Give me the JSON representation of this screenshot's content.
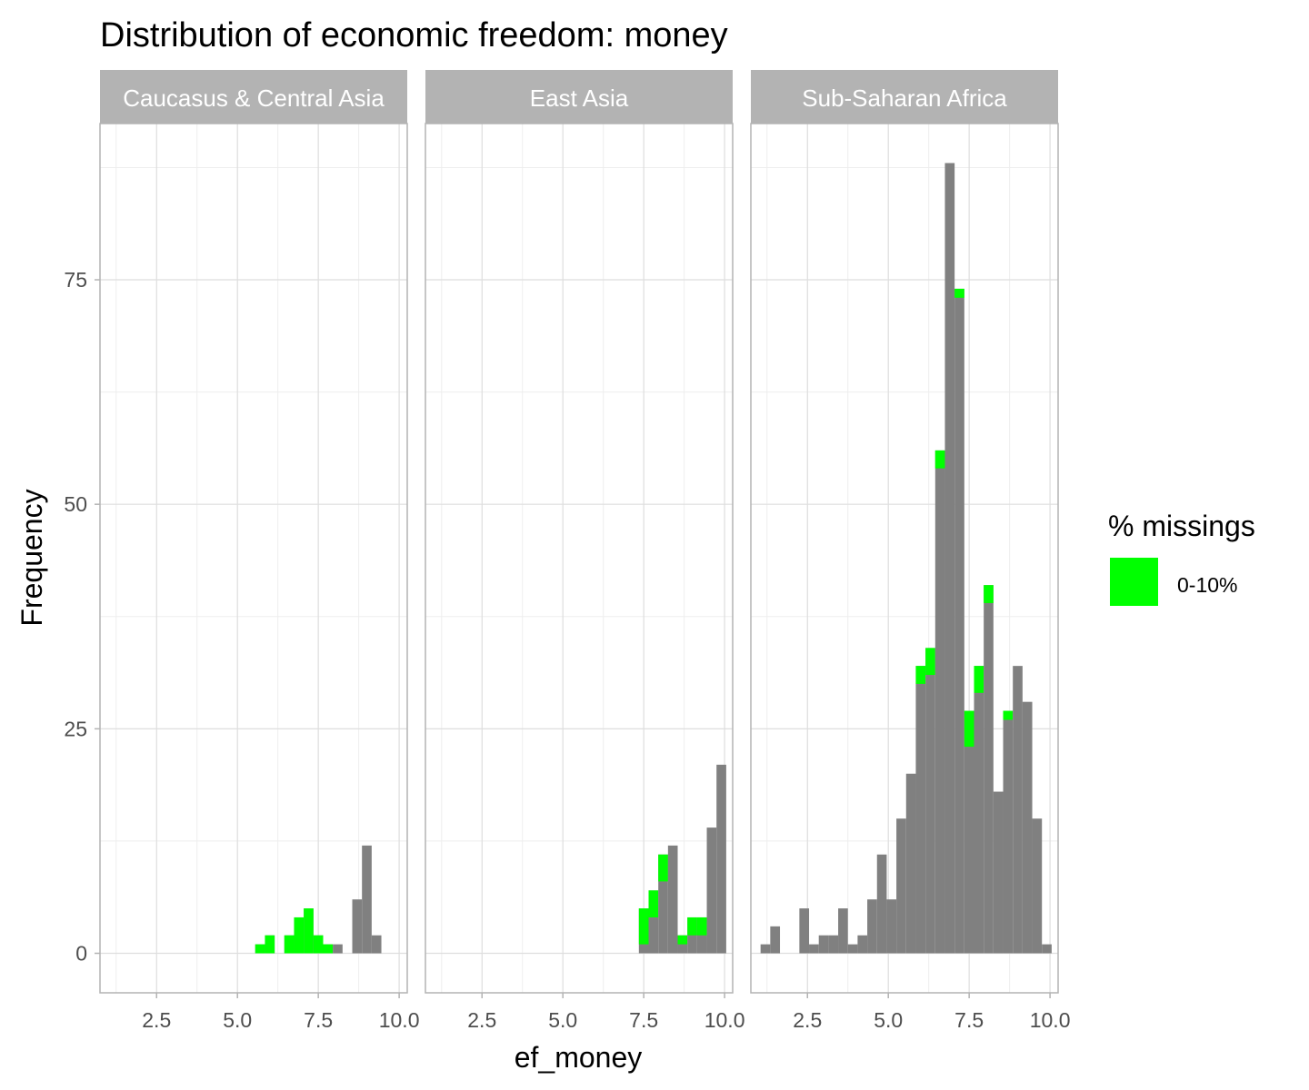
{
  "chart_data": {
    "type": "bar",
    "title": "Distribution of economic freedom: money",
    "xlabel": "ef_money",
    "ylabel": "Frequency",
    "xlim": [
      0.75,
      10.25
    ],
    "ylim": [
      -4.4,
      92.4
    ],
    "x_ticks": [
      2.5,
      5.0,
      7.5,
      10.0
    ],
    "x_tick_labels": [
      "2.5",
      "5.0",
      "7.5",
      "10.0"
    ],
    "y_ticks": [
      0,
      25,
      50,
      75
    ],
    "y_tick_labels": [
      "0",
      "25",
      "50",
      "75"
    ],
    "bin_width": 0.3,
    "grid": true,
    "legend": {
      "title": "% missings",
      "position": "right",
      "entries": [
        {
          "label": "0-10%",
          "color": "#00ff00"
        }
      ]
    },
    "colors": {
      "bars": "#808080",
      "missing": "#00ff00",
      "strip": "#b3b3b3",
      "grid_major": "#dedede",
      "grid_minor": "#eeeeee",
      "panel_border": "#b3b3b3"
    },
    "panels": [
      {
        "name": "Caucasus & Central Asia",
        "bins": [
          {
            "x": 5.7,
            "total": 1,
            "missing": 1
          },
          {
            "x": 6.0,
            "total": 2,
            "missing": 2
          },
          {
            "x": 6.6,
            "total": 2,
            "missing": 2
          },
          {
            "x": 6.9,
            "total": 4,
            "missing": 4
          },
          {
            "x": 7.2,
            "total": 5,
            "missing": 5
          },
          {
            "x": 7.5,
            "total": 2,
            "missing": 2
          },
          {
            "x": 7.8,
            "total": 1,
            "missing": 1
          },
          {
            "x": 8.1,
            "total": 1,
            "missing": 0
          },
          {
            "x": 8.7,
            "total": 6,
            "missing": 0
          },
          {
            "x": 9.0,
            "total": 12,
            "missing": 0
          },
          {
            "x": 9.3,
            "total": 2,
            "missing": 0
          }
        ]
      },
      {
        "name": "East Asia",
        "bins": [
          {
            "x": 7.5,
            "total": 5,
            "missing": 4
          },
          {
            "x": 7.8,
            "total": 7,
            "missing": 3
          },
          {
            "x": 8.1,
            "total": 11,
            "missing": 3
          },
          {
            "x": 8.4,
            "total": 12,
            "missing": 0
          },
          {
            "x": 8.7,
            "total": 2,
            "missing": 1
          },
          {
            "x": 9.0,
            "total": 4,
            "missing": 2
          },
          {
            "x": 9.3,
            "total": 4,
            "missing": 2
          },
          {
            "x": 9.6,
            "total": 14,
            "missing": 0
          },
          {
            "x": 9.9,
            "total": 21,
            "missing": 0
          }
        ]
      },
      {
        "name": "Sub-Saharan Africa",
        "bins": [
          {
            "x": 1.2,
            "total": 1,
            "missing": 0
          },
          {
            "x": 1.5,
            "total": 3,
            "missing": 0
          },
          {
            "x": 2.4,
            "total": 5,
            "missing": 0
          },
          {
            "x": 2.7,
            "total": 1,
            "missing": 0
          },
          {
            "x": 3.0,
            "total": 2,
            "missing": 0
          },
          {
            "x": 3.3,
            "total": 2,
            "missing": 0
          },
          {
            "x": 3.6,
            "total": 5,
            "missing": 0
          },
          {
            "x": 3.9,
            "total": 1,
            "missing": 0
          },
          {
            "x": 4.2,
            "total": 2,
            "missing": 0
          },
          {
            "x": 4.5,
            "total": 6,
            "missing": 0
          },
          {
            "x": 4.8,
            "total": 11,
            "missing": 0
          },
          {
            "x": 5.1,
            "total": 6,
            "missing": 0
          },
          {
            "x": 5.4,
            "total": 15,
            "missing": 0
          },
          {
            "x": 5.7,
            "total": 20,
            "missing": 0
          },
          {
            "x": 6.0,
            "total": 32,
            "missing": 2
          },
          {
            "x": 6.3,
            "total": 34,
            "missing": 3
          },
          {
            "x": 6.6,
            "total": 56,
            "missing": 2
          },
          {
            "x": 6.9,
            "total": 88,
            "missing": 0
          },
          {
            "x": 7.2,
            "total": 74,
            "missing": 1
          },
          {
            "x": 7.5,
            "total": 27,
            "missing": 4
          },
          {
            "x": 7.8,
            "total": 32,
            "missing": 3
          },
          {
            "x": 8.1,
            "total": 41,
            "missing": 2
          },
          {
            "x": 8.4,
            "total": 18,
            "missing": 0
          },
          {
            "x": 8.7,
            "total": 27,
            "missing": 1
          },
          {
            "x": 9.0,
            "total": 32,
            "missing": 0
          },
          {
            "x": 9.3,
            "total": 28,
            "missing": 0
          },
          {
            "x": 9.6,
            "total": 15,
            "missing": 0
          },
          {
            "x": 9.9,
            "total": 1,
            "missing": 0
          }
        ]
      }
    ]
  }
}
